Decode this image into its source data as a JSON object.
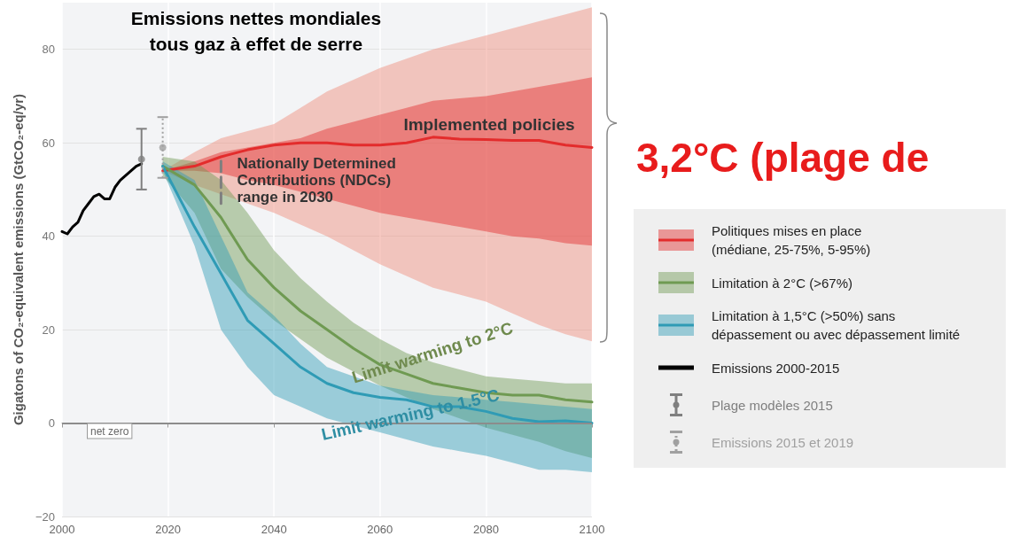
{
  "chart_data": {
    "type": "line",
    "title": "Emissions nettes mondiales\ntous gaz à effet de serre",
    "ylabel": "Gigatons of CO₂-equivalent emissions (GtCO₂-eq/yr)",
    "xlim": [
      2000,
      2100
    ],
    "xticks": [
      2000,
      2020,
      2040,
      2060,
      2080,
      2100
    ],
    "ylim": [
      -20,
      90
    ],
    "yticks": [
      -20,
      0,
      20,
      40,
      60,
      80
    ],
    "grid": true,
    "legend": "right",
    "ref_lines": [
      {
        "axis": "y",
        "value": 0,
        "label": "net zero",
        "color": "#8c8c8c"
      }
    ],
    "annotations": [
      "Implemented policies",
      {
        "text": "Nationally Determined\nContributions (NDCs)\nrange in 2030",
        "x": 2030,
        "y": 52
      },
      "Limit warming to 2°C",
      "Limit warming to 1.5°C",
      "3,2°C (plage de"
    ],
    "series": [
      {
        "color": "#f08a78",
        "x": [
          2019,
          2025,
          2030,
          2035,
          2040,
          2045,
          2050,
          2055,
          2060,
          2065,
          2070,
          2075,
          2080,
          2085,
          2090,
          2095,
          2100
        ],
        "values": [
          null,
          null,
          null,
          null,
          null,
          null,
          null,
          null,
          null,
          null,
          null,
          null,
          null,
          null,
          null,
          null,
          null
        ],
        "lower": [
          54,
          51,
          49,
          47,
          45,
          42.5,
          40,
          37,
          34,
          31.5,
          29,
          27.5,
          26,
          23.5,
          21,
          19,
          17.5
        ],
        "upper": [
          54,
          58,
          61,
          62.5,
          64,
          67.5,
          71,
          73.5,
          76,
          78,
          80,
          81.5,
          83,
          84.5,
          86,
          87.5,
          89
        ]
      },
      {
        "name": "Politiques mises en place\n(médiane, 25-75%, 5-95%)",
        "color": "#e32c2c",
        "marker": "none",
        "x": [
          2019,
          2025,
          2030,
          2035,
          2040,
          2045,
          2050,
          2055,
          2060,
          2065,
          2070,
          2075,
          2080,
          2085,
          2090,
          2095,
          2100
        ],
        "values": [
          54,
          55,
          57,
          58.5,
          59.5,
          60,
          60,
          59.5,
          59.5,
          60,
          61.2,
          60.8,
          60.7,
          60.5,
          60.5,
          59.5,
          59
        ],
        "lower": [
          54,
          54,
          53.5,
          52,
          51,
          49.5,
          48,
          46.5,
          45,
          44,
          43,
          42,
          41,
          40,
          39.5,
          38.5,
          38
        ],
        "upper": [
          54,
          56,
          58,
          59,
          60,
          61,
          63,
          64.5,
          66,
          67.5,
          69,
          69.5,
          70,
          71,
          72,
          73,
          74
        ]
      },
      {
        "name": "Limitation à 2°C (>67%)",
        "color": "#6f9a52",
        "marker": "none",
        "x": [
          2019,
          2025,
          2030,
          2035,
          2040,
          2045,
          2050,
          2055,
          2060,
          2065,
          2070,
          2075,
          2080,
          2085,
          2090,
          2095,
          2100
        ],
        "values": [
          55,
          51,
          44,
          35,
          29,
          24,
          20,
          16,
          12.5,
          10.5,
          8.5,
          7.5,
          6.5,
          6,
          6,
          5,
          4.5
        ],
        "lower": [
          53,
          45,
          33,
          27,
          22,
          18,
          14,
          11,
          8,
          5.5,
          3,
          1,
          -1,
          -2.5,
          -4,
          -6,
          -7.5
        ],
        "upper": [
          57,
          56,
          52,
          45,
          37,
          31,
          26,
          21.5,
          18,
          15,
          13,
          11.5,
          10,
          9.5,
          9,
          8.5,
          8.5
        ]
      },
      {
        "name": "Limitation à 1,5°C (>50%) sans\ndépassement ou avec dépassement limité",
        "color": "#2f9bb5",
        "marker": "none",
        "x": [
          2019,
          2025,
          2030,
          2035,
          2040,
          2045,
          2050,
          2055,
          2060,
          2065,
          2070,
          2075,
          2080,
          2085,
          2090,
          2095,
          2100
        ],
        "values": [
          55,
          42,
          32,
          22,
          17,
          12,
          8.5,
          6.5,
          5.5,
          5,
          3.5,
          3.5,
          2.5,
          1,
          0.3,
          0.5,
          0
        ],
        "lower": [
          54,
          38,
          20,
          12,
          6,
          3.5,
          1,
          -0.5,
          -2,
          -3.5,
          -5,
          -6,
          -7,
          -8.5,
          -10,
          -10,
          -10.5
        ],
        "upper": [
          56,
          52,
          40,
          28,
          23,
          17,
          12,
          10,
          8,
          7,
          6,
          5.5,
          5,
          4.5,
          4,
          3.5,
          3
        ]
      },
      {
        "name": "Emissions 2000-2015",
        "color": "#000000",
        "marker": "none",
        "x": [
          2000,
          2001,
          2002,
          2003,
          2004,
          2005,
          2006,
          2007,
          2008,
          2009,
          2010,
          2011,
          2012,
          2013,
          2014,
          2015
        ],
        "values": [
          41,
          40.5,
          42,
          43,
          45.5,
          47,
          48.5,
          49,
          48,
          48,
          50.5,
          52,
          53,
          54,
          55,
          55.5
        ]
      },
      {
        "name": "Plage modèles 2015",
        "type": "scatter",
        "color": "#7f7f7f",
        "marker": "circle",
        "line_style": "solid",
        "x": [
          2015
        ],
        "values": [
          56.5
        ],
        "errors": [
          [
            50,
            63
          ]
        ]
      },
      {
        "name": "Emissions 2015 et 2019",
        "type": "scatter",
        "color": "#a0a0a0",
        "marker": "circle",
        "line_style": "dotted",
        "x": [
          2019
        ],
        "values": [
          59
        ],
        "errors": [
          [
            52.5,
            65.5
          ]
        ]
      },
      {
        "type": "line",
        "color": "#7f7f7f",
        "marker": "none",
        "line_style": "dashed",
        "x": [
          2030,
          2030
        ],
        "values": [
          47,
          57
        ]
      }
    ]
  }
}
